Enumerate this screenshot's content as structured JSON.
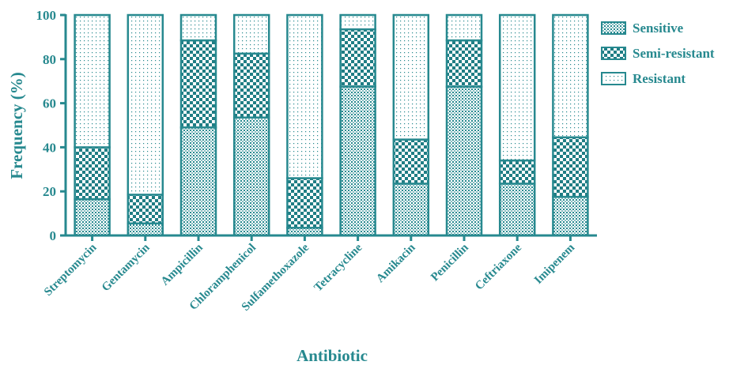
{
  "chart_data": {
    "type": "bar",
    "stacked": true,
    "xlabel": "Antibiotic",
    "ylabel": "Frequency (%)",
    "ylim": [
      0,
      100
    ],
    "yticks": [
      0,
      20,
      40,
      60,
      80,
      100
    ],
    "categories": [
      "Streptomycin",
      "Gentamycin",
      "Ampicillin",
      "Chloramphenicol",
      "Sulfamethoxazole",
      "Tetracycline",
      "Amikacin",
      "Penicillin",
      "Ceftriaxone",
      "Imipenem"
    ],
    "series": [
      {
        "name": "Sensitive",
        "pattern": "fine-dots",
        "values": [
          16.5,
          5.5,
          49,
          53.5,
          3.5,
          67.5,
          23.5,
          67.5,
          23.5,
          17.5
        ]
      },
      {
        "name": "Semi-resistant",
        "pattern": "checker",
        "values": [
          23.5,
          13,
          39.5,
          29,
          22.5,
          26,
          20,
          21,
          10.5,
          27
        ]
      },
      {
        "name": "Resistant",
        "pattern": "sparse-dots",
        "values": [
          60,
          81.5,
          11.5,
          17.5,
          74,
          6.5,
          56.5,
          11.5,
          66,
          55.5
        ]
      }
    ],
    "legend_position": "right",
    "grid": false,
    "colors": {
      "axis": "#27898f",
      "text": "#27898f",
      "bar_fill": "#ffffff"
    }
  }
}
